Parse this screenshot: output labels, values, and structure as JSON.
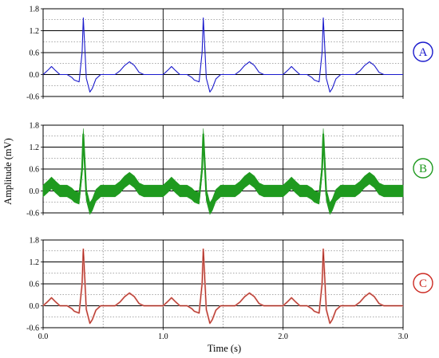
{
  "chart_data": {
    "type": "line",
    "xlabel": "Time (s)",
    "ylabel": "Amplitude (mV)",
    "x_ticks": [
      "0.0",
      "1.0",
      "2.0",
      "3.0"
    ],
    "xlim": [
      0,
      3
    ],
    "ylim": [
      -0.6,
      1.8
    ],
    "y_ticks": [
      "1.8",
      "1.2",
      "0.6",
      "0.0",
      "-0.6"
    ],
    "grid": true,
    "beat_period_s": 1.0,
    "beat_template": {
      "t": [
        0,
        0.04,
        0.07,
        0.1,
        0.14,
        0.2,
        0.24,
        0.26,
        0.3,
        0.325,
        0.335,
        0.345,
        0.36,
        0.39,
        0.41,
        0.44,
        0.48,
        0.52,
        0.6,
        0.64,
        0.68,
        0.72,
        0.76,
        0.8,
        0.84,
        1.0
      ],
      "v": [
        0.0,
        0.12,
        0.22,
        0.12,
        0.0,
        0.0,
        -0.08,
        -0.15,
        -0.2,
        0.6,
        1.55,
        0.9,
        -0.1,
        -0.48,
        -0.38,
        -0.12,
        0.0,
        0.0,
        0.0,
        0.1,
        0.25,
        0.35,
        0.25,
        0.06,
        0.0,
        0.0
      ]
    },
    "panels": [
      {
        "label": "A",
        "color": "#1a1acc",
        "noise_mv": 0.0,
        "variant": "clean"
      },
      {
        "label": "B",
        "color": "#1f9a1f",
        "noise_mv": 0.16,
        "variant": "noisy"
      },
      {
        "label": "C",
        "color": "#cc2a22",
        "noise_mv": 0.0,
        "variant": "clean+filtered"
      }
    ]
  }
}
